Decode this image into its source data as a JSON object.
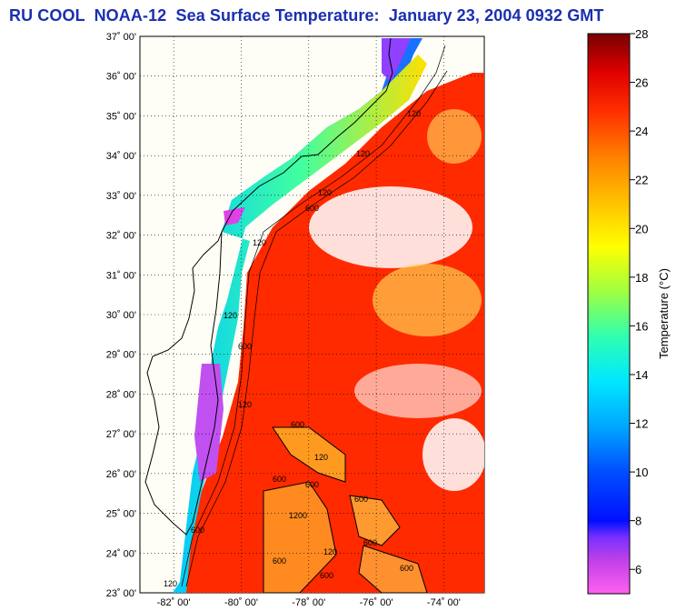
{
  "title": "RU COOL  NOAA-12  Sea Surface Temperature:  January 23, 2004 0932 GMT",
  "map": {
    "lat_labels": [
      "37˚ 00'",
      "36˚ 00'",
      "35˚ 00'",
      "34˚ 00'",
      "33˚ 00'",
      "32˚ 00'",
      "31˚ 00'",
      "30˚ 00'",
      "29˚ 00'",
      "28˚ 00'",
      "27˚ 00'",
      "26˚ 00'",
      "25˚ 00'",
      "24˚ 00'",
      "23˚ 00'"
    ],
    "lat_values": [
      37,
      36,
      35,
      34,
      33,
      32,
      31,
      30,
      29,
      28,
      27,
      26,
      25,
      24,
      23
    ],
    "lon_labels": [
      "-82˚ 00'",
      "-80˚ 00'",
      "-78˚ 00'",
      "-76˚ 00'",
      "-74˚ 00'"
    ],
    "lon_values": [
      -82,
      -80,
      -78,
      -76,
      -74
    ],
    "lon_range": [
      -83,
      -72.8
    ],
    "lat_range": [
      23,
      37
    ],
    "contour_labels": [
      "120",
      "120",
      "120",
      "120",
      "600",
      "120",
      "120",
      "600",
      "600",
      "120",
      "600",
      "600",
      "600",
      "1200",
      "600",
      "120",
      "600",
      "600",
      "120",
      "600",
      "600"
    ]
  },
  "colorbar": {
    "title": "Temperature (°C)",
    "tick_labels": [
      "28",
      "26",
      "24",
      "22",
      "20",
      "18",
      "16",
      "14",
      "12",
      "10",
      "8",
      "6"
    ],
    "tick_values": [
      28,
      26,
      24,
      22,
      20,
      18,
      16,
      14,
      12,
      10,
      8,
      6
    ],
    "range": [
      5,
      28
    ],
    "colors": [
      "#ff55ee",
      "#b030e0",
      "#7a2cff",
      "#0018ff",
      "#0060ff",
      "#00b8ff",
      "#00f0ff",
      "#20ffb0",
      "#90ff40",
      "#ffff00",
      "#ffc000",
      "#ff8800",
      "#ff3a00",
      "#e00000",
      "#7a0000"
    ]
  }
}
